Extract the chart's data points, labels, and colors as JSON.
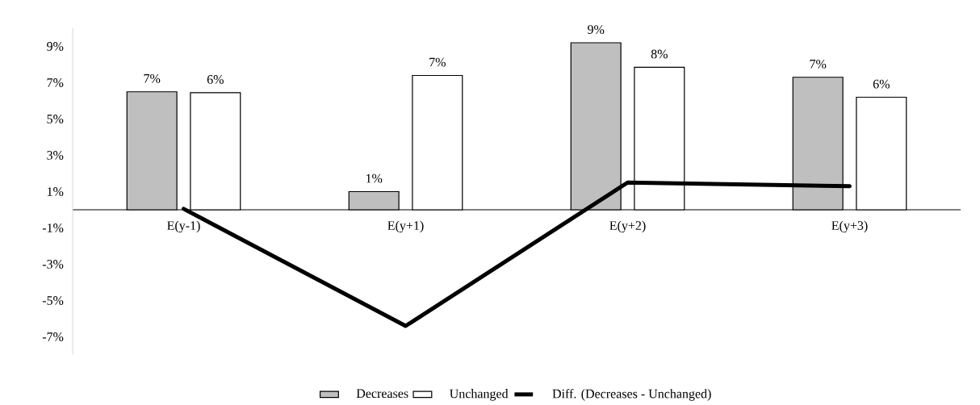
{
  "chart_data": {
    "type": "bar",
    "categories": [
      "E(y-1)",
      "E(y+1)",
      "E(y+2)",
      "E(y+3)"
    ],
    "series": [
      {
        "name": "Decreases",
        "color": "#bfbfbf",
        "values": [
          6.5,
          1.0,
          9.2,
          7.3
        ],
        "value_labels": [
          "7%",
          "1%",
          "9%",
          "7%"
        ]
      },
      {
        "name": "Unchanged",
        "color": "#ffffff",
        "values": [
          6.45,
          7.4,
          7.85,
          6.2
        ],
        "value_labels": [
          "6%",
          "7%",
          "8%",
          "6%"
        ]
      },
      {
        "name": "Diff. (Decreases - Unchanged)",
        "type": "line",
        "color": "#000000",
        "values": [
          0.05,
          -6.4,
          1.5,
          1.3
        ]
      }
    ],
    "ylim": [
      -8,
      10
    ],
    "yticks": [
      {
        "value": -7,
        "label": "-7%"
      },
      {
        "value": -5,
        "label": "-5%"
      },
      {
        "value": -3,
        "label": "-3%"
      },
      {
        "value": -1,
        "label": "-1%"
      },
      {
        "value": 1,
        "label": "1%"
      },
      {
        "value": 3,
        "label": "3%"
      },
      {
        "value": 5,
        "label": "5%"
      },
      {
        "value": 7,
        "label": "7%"
      },
      {
        "value": 9,
        "label": "9%"
      }
    ],
    "legend": "bottom"
  }
}
